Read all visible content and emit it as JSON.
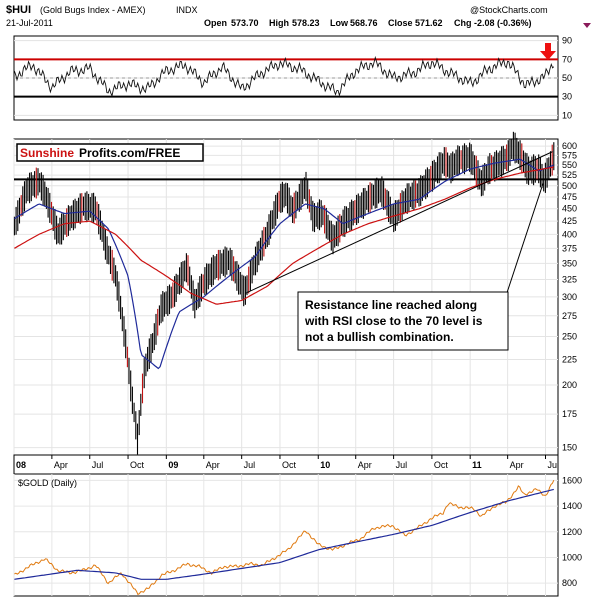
{
  "header": {
    "symbol": "$HUI",
    "name": "(Gold Bugs Index - AMEX)",
    "exchange": "INDX",
    "date": "21-Jul-2011",
    "open_label": "Open",
    "open": "573.70",
    "high_label": "High",
    "high": "578.23",
    "low_label": "Low",
    "low": "568.76",
    "close_label": "Close",
    "close": "571.62",
    "chg_label": "Chg",
    "chg": "-2.08 (-0.36%)",
    "watermark": "@StockCharts.com"
  },
  "logo": {
    "brand1": "Sunshine",
    "brand2": "Profits.com/FREE"
  },
  "annotation": "Resistance line reached along with RSI close to the 70 level is not a bullish combination.",
  "colors": {
    "price": "#000000",
    "ma_fast": "#1f2a9a",
    "ma_slow": "#cc1111",
    "gold": "#e07a10",
    "resistance": "#cc0000",
    "arrow": "#ee1111"
  },
  "chart_data": [
    {
      "type": "line",
      "name": "rsi",
      "ylim": [
        5,
        95
      ],
      "yticks": [
        10,
        30,
        50,
        70,
        90
      ],
      "levels": [
        30,
        70
      ],
      "x": [
        "2008-01-02",
        "2008-02-15",
        "2008-04-01",
        "2008-05-15",
        "2008-07-01",
        "2008-08-15",
        "2008-10-01",
        "2008-11-15",
        "2009-01-02",
        "2009-02-15",
        "2009-04-01",
        "2009-05-15",
        "2009-07-01",
        "2009-08-15",
        "2009-10-01",
        "2009-11-15",
        "2010-01-04",
        "2010-02-15",
        "2010-04-01",
        "2010-05-15",
        "2010-07-01",
        "2010-08-15",
        "2010-10-01",
        "2010-11-15",
        "2011-01-03",
        "2011-02-15",
        "2011-04-01",
        "2011-05-15",
        "2011-07-01",
        "2011-07-21"
      ],
      "y": [
        52,
        64,
        40,
        57,
        60,
        36,
        44,
        38,
        58,
        64,
        45,
        62,
        38,
        55,
        66,
        60,
        46,
        35,
        58,
        67,
        50,
        55,
        67,
        55,
        44,
        60,
        68,
        42,
        52,
        68
      ]
    },
    {
      "type": "line",
      "name": "hui",
      "log_scale": true,
      "ylim": [
        145,
        620
      ],
      "yticks": [
        150,
        175,
        200,
        225,
        250,
        275,
        300,
        325,
        350,
        375,
        400,
        425,
        450,
        475,
        500,
        525,
        550,
        575,
        600
      ],
      "x_range": [
        "2008-01-01",
        "2011-07-31"
      ],
      "x_labels": [
        "08",
        "Apr",
        "Jul",
        "Oct",
        "09",
        "Apr",
        "Jul",
        "Oct",
        "10",
        "Apr",
        "Jul",
        "Oct",
        "11",
        "Apr",
        "Jul"
      ],
      "x_label_dates": [
        "2008-01-01",
        "2008-04-01",
        "2008-07-01",
        "2008-10-01",
        "2009-01-01",
        "2009-04-01",
        "2009-07-01",
        "2009-10-01",
        "2010-01-01",
        "2010-04-01",
        "2010-07-01",
        "2010-10-01",
        "2011-01-01",
        "2011-04-01",
        "2011-07-01"
      ],
      "resistance_level": 515,
      "series": [
        {
          "role": "price",
          "x": [
            "2008-01-02",
            "2008-02-01",
            "2008-03-01",
            "2008-03-20",
            "2008-04-15",
            "2008-05-15",
            "2008-06-15",
            "2008-07-15",
            "2008-08-10",
            "2008-09-01",
            "2008-09-20",
            "2008-10-10",
            "2008-10-24",
            "2008-11-10",
            "2008-12-01",
            "2008-12-20",
            "2009-01-15",
            "2009-02-20",
            "2009-03-10",
            "2009-04-01",
            "2009-05-01",
            "2009-06-01",
            "2009-07-08",
            "2009-08-01",
            "2009-09-01",
            "2009-10-01",
            "2009-10-15",
            "2009-11-01",
            "2009-12-02",
            "2009-12-20",
            "2010-01-10",
            "2010-02-05",
            "2010-03-01",
            "2010-04-01",
            "2010-05-01",
            "2010-06-01",
            "2010-07-01",
            "2010-08-01",
            "2010-09-01",
            "2010-10-01",
            "2010-11-01",
            "2010-11-15",
            "2010-12-01",
            "2011-01-01",
            "2011-01-28",
            "2011-02-15",
            "2011-03-01",
            "2011-04-01",
            "2011-04-15",
            "2011-05-01",
            "2011-05-20",
            "2011-06-15",
            "2011-06-28",
            "2011-07-10",
            "2011-07-21"
          ],
          "y": [
            415,
            490,
            510,
            470,
            400,
            430,
            455,
            450,
            375,
            330,
            260,
            190,
            155,
            215,
            245,
            285,
            300,
            345,
            290,
            320,
            345,
            355,
            305,
            350,
            400,
            470,
            480,
            445,
            500,
            430,
            440,
            390,
            420,
            445,
            470,
            490,
            430,
            470,
            485,
            520,
            560,
            540,
            560,
            570,
            505,
            540,
            545,
            570,
            600,
            575,
            535,
            540,
            510,
            545,
            572
          ]
        },
        {
          "role": "ma_fast",
          "x": [
            "2008-01-02",
            "2008-03-01",
            "2008-05-01",
            "2008-07-01",
            "2008-08-15",
            "2008-10-01",
            "2008-11-01",
            "2008-12-15",
            "2009-02-01",
            "2009-04-01",
            "2009-06-01",
            "2009-08-01",
            "2009-10-01",
            "2009-12-01",
            "2010-01-15",
            "2010-03-01",
            "2010-05-01",
            "2010-07-01",
            "2010-09-01",
            "2010-11-01",
            "2011-01-01",
            "2011-03-01",
            "2011-05-01",
            "2011-06-15",
            "2011-07-21"
          ],
          "y": [
            430,
            460,
            440,
            445,
            410,
            330,
            230,
            215,
            280,
            300,
            330,
            360,
            420,
            460,
            450,
            420,
            440,
            460,
            470,
            510,
            540,
            555,
            565,
            535,
            550
          ]
        },
        {
          "role": "ma_slow",
          "x": [
            "2008-01-02",
            "2008-03-01",
            "2008-05-01",
            "2008-07-01",
            "2008-09-01",
            "2008-11-01",
            "2009-01-01",
            "2009-03-01",
            "2009-05-01",
            "2009-07-01",
            "2009-09-01",
            "2009-11-01",
            "2010-01-01",
            "2010-03-01",
            "2010-05-01",
            "2010-07-01",
            "2010-09-01",
            "2010-11-01",
            "2011-01-01",
            "2011-03-01",
            "2011-05-01",
            "2011-07-21"
          ],
          "y": [
            375,
            400,
            420,
            425,
            400,
            355,
            330,
            305,
            290,
            295,
            315,
            350,
            375,
            400,
            420,
            435,
            450,
            470,
            495,
            515,
            530,
            545
          ]
        }
      ],
      "trendline": {
        "x": [
          "2009-07-10",
          "2011-07-18"
        ],
        "y": [
          305,
          585
        ]
      },
      "pointer_line": {
        "x": [
          "2011-06-25",
          "2011-03-30"
        ],
        "y": [
          505,
          305
        ]
      }
    },
    {
      "type": "line",
      "name": "$GOLD (Daily)",
      "ylim": [
        700,
        1650
      ],
      "yticks": [
        800,
        1000,
        1200,
        1400,
        1600
      ],
      "series": [
        {
          "role": "gold",
          "x": [
            "2008-01-02",
            "2008-02-01",
            "2008-03-15",
            "2008-04-15",
            "2008-05-15",
            "2008-06-15",
            "2008-07-15",
            "2008-08-15",
            "2008-09-15",
            "2008-10-24",
            "2008-11-20",
            "2008-12-20",
            "2009-01-20",
            "2009-02-20",
            "2009-03-20",
            "2009-04-20",
            "2009-05-20",
            "2009-06-20",
            "2009-07-20",
            "2009-08-20",
            "2009-09-20",
            "2009-10-20",
            "2009-12-02",
            "2010-01-01",
            "2010-02-05",
            "2010-03-15",
            "2010-04-15",
            "2010-05-15",
            "2010-06-28",
            "2010-07-28",
            "2010-08-28",
            "2010-09-28",
            "2010-10-28",
            "2010-11-09",
            "2010-12-10",
            "2011-01-10",
            "2011-01-28",
            "2011-02-28",
            "2011-03-28",
            "2011-04-28",
            "2011-05-10",
            "2011-06-10",
            "2011-07-01",
            "2011-07-21"
          ],
          "y": [
            860,
            920,
            990,
            900,
            880,
            900,
            940,
            800,
            880,
            720,
            760,
            860,
            900,
            950,
            930,
            880,
            930,
            930,
            950,
            940,
            1000,
            1060,
            1210,
            1100,
            1060,
            1110,
            1150,
            1230,
            1250,
            1170,
            1230,
            1300,
            1350,
            1420,
            1390,
            1380,
            1320,
            1400,
            1430,
            1550,
            1490,
            1530,
            1480,
            1600
          ]
        },
        {
          "role": "gold_ma",
          "x": [
            "2008-01-02",
            "2008-06-01",
            "2008-09-01",
            "2008-11-01",
            "2009-01-01",
            "2009-04-01",
            "2009-07-01",
            "2009-10-01",
            "2010-01-01",
            "2010-04-01",
            "2010-07-01",
            "2010-10-01",
            "2011-01-01",
            "2011-04-01",
            "2011-07-21"
          ],
          "y": [
            830,
            900,
            880,
            830,
            830,
            870,
            915,
            960,
            1060,
            1120,
            1180,
            1250,
            1350,
            1440,
            1530
          ]
        }
      ]
    }
  ]
}
